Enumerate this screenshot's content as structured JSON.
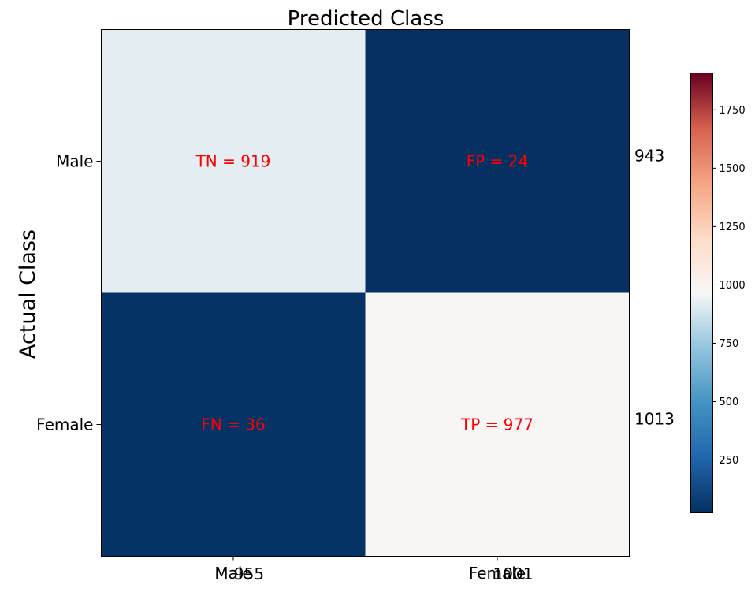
{
  "chart_data": {
    "type": "heatmap",
    "title": "Predicted Class",
    "xlabel": "",
    "ylabel": "Actual Class",
    "x_categories": [
      "Male",
      "Female"
    ],
    "y_categories": [
      "Male",
      "Female"
    ],
    "values": [
      [
        919,
        24
      ],
      [
        36,
        977
      ]
    ],
    "cell_labels": [
      [
        "TN = 919",
        "FP = 24"
      ],
      [
        "FN = 36",
        "TP = 977"
      ]
    ],
    "row_totals": [
      "943",
      "1013"
    ],
    "column_totals": [
      "955",
      "1001"
    ],
    "colormap": "RdBu_r",
    "colorbar": {
      "range": [
        24,
        1908
      ],
      "ticks": [
        250,
        500,
        750,
        1000,
        1250,
        1500,
        1750
      ],
      "tick_labels": [
        "250",
        "500",
        "750",
        "1000",
        "1250",
        "1500",
        "1750"
      ]
    },
    "annotation_color": "#ff0000",
    "grid": false
  }
}
